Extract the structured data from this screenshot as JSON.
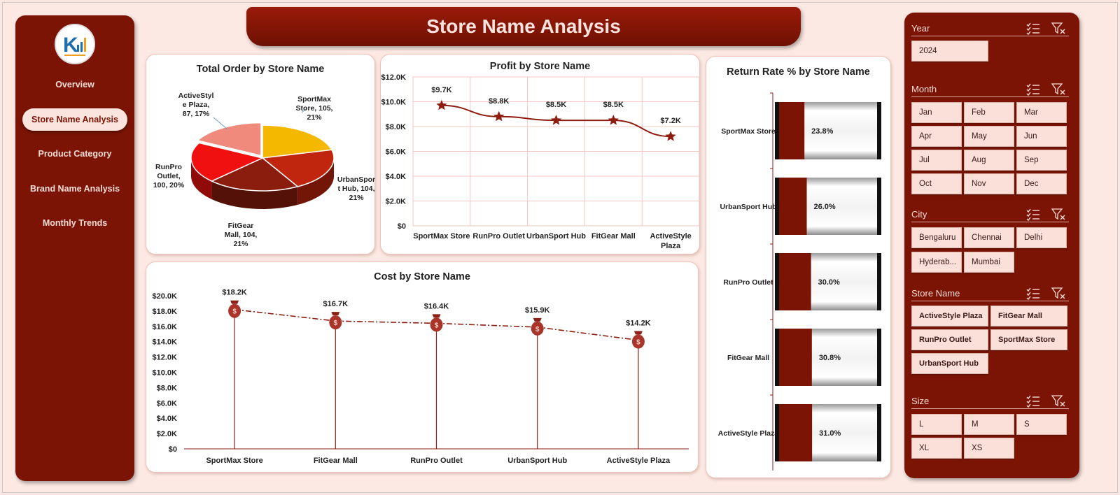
{
  "title": "Store Name Analysis",
  "nav": {
    "items": [
      {
        "label": "Overview"
      },
      {
        "label": "Store Name Analysis",
        "active": true
      },
      {
        "label": "Product Category"
      },
      {
        "label": "Brand Name Analysis"
      },
      {
        "label": "Monthly Trends"
      }
    ]
  },
  "colors": {
    "primary": "#7b1404",
    "background": "#fde9e4",
    "chip": "#fbe0da",
    "line": "#8e1c10"
  },
  "chart_data": [
    {
      "type": "pie",
      "title": "Total Order by Store Name",
      "slices": [
        {
          "name": "SportMax Store",
          "value": 105,
          "percent": "21%",
          "label_lines": [
            "SportMax",
            "Store, 105,",
            "21%"
          ],
          "color": "#f5b800"
        },
        {
          "name": "UrbanSport Hub",
          "value": 104,
          "percent": "21%",
          "label_lines": [
            "UrbanSpor",
            "t Hub, 104,",
            "21%"
          ],
          "color": "#c0250e"
        },
        {
          "name": "FitGear Mall",
          "value": 104,
          "percent": "21%",
          "label_lines": [
            "FitGear",
            "Mall, 104,",
            "21%"
          ],
          "color": "#8a1d0e"
        },
        {
          "name": "RunPro Outlet",
          "value": 100,
          "percent": "20%",
          "label_lines": [
            "RunPro",
            "Outlet,",
            "100, 20%"
          ],
          "color": "#f01010"
        },
        {
          "name": "ActiveStyle Plaza",
          "value": 87,
          "percent": "17%",
          "label_lines": [
            "ActiveStyl",
            "e Plaza,",
            "87, 17%"
          ],
          "color": "#f08a7c"
        }
      ]
    },
    {
      "type": "line",
      "title": "Profit by Store Name",
      "categories": [
        "SportMax Store",
        "RunPro Outlet",
        "UrbanSport Hub",
        "FitGear Mall",
        "ActiveStyle Plaza"
      ],
      "category_lines": [
        [
          "SportMax Store"
        ],
        [
          "RunPro Outlet"
        ],
        [
          "UrbanSport Hub"
        ],
        [
          "FitGear Mall"
        ],
        [
          "ActiveStyle",
          "Plaza"
        ]
      ],
      "values": [
        9700,
        8800,
        8500,
        8500,
        7200
      ],
      "data_labels": [
        "$9.7K",
        "$8.8K",
        "$8.5K",
        "$8.5K",
        "$7.2K"
      ],
      "yticks": [
        "$0",
        "$2.0K",
        "$4.0K",
        "$6.0K",
        "$8.0K",
        "$10.0K",
        "$12.0K"
      ],
      "ylim": [
        0,
        12000
      ],
      "grid": true,
      "marker": "star"
    },
    {
      "type": "bar",
      "orientation": "horizontal",
      "title": "Return Rate % by Store Name",
      "categories": [
        "SportMax Store",
        "UrbanSport Hub",
        "RunPro Outlet",
        "FitGear Mall",
        "ActiveStyle Plaza"
      ],
      "values": [
        23.8,
        26.0,
        30.0,
        30.8,
        31.0
      ],
      "data_labels": [
        "23.8%",
        "26.0%",
        "30.0%",
        "30.8%",
        "31.0%"
      ],
      "xlim": [
        0,
        100
      ]
    },
    {
      "type": "line",
      "title": "Cost by Store Name",
      "categories": [
        "SportMax Store",
        "FitGear Mall",
        "RunPro Outlet",
        "UrbanSport Hub",
        "ActiveStyle Plaza"
      ],
      "values": [
        18200,
        16700,
        16400,
        15900,
        14200
      ],
      "data_labels": [
        "$18.2K",
        "$16.7K",
        "$16.4K",
        "$15.9K",
        "$14.2K"
      ],
      "yticks": [
        "$0",
        "$2.0K",
        "$4.0K",
        "$6.0K",
        "$8.0K",
        "$10.0K",
        "$12.0K",
        "$14.0K",
        "$16.0K",
        "$18.0K",
        "$20.0K"
      ],
      "ylim": [
        0,
        20000
      ],
      "marker": "money-bag",
      "line_style": "dash-dot"
    }
  ],
  "slicers": [
    {
      "name": "year",
      "label": "Year",
      "items": [
        "2024"
      ]
    },
    {
      "name": "month",
      "label": "Month",
      "items": [
        "Jan",
        "Feb",
        "Mar",
        "Apr",
        "May",
        "Jun",
        "Jul",
        "Aug",
        "Sep",
        "Oct",
        "Nov",
        "Dec"
      ]
    },
    {
      "name": "city",
      "label": "City",
      "items": [
        "Bengaluru",
        "Chennai",
        "Delhi",
        "Hyderab...",
        "Mumbai"
      ]
    },
    {
      "name": "store",
      "label": "Store Name",
      "items": [
        "ActiveStyle Plaza",
        "FitGear Mall",
        "RunPro Outlet",
        "SportMax Store",
        "UrbanSport Hub"
      ]
    },
    {
      "name": "size",
      "label": "Size",
      "items": [
        "L",
        "M",
        "S",
        "XL",
        "XS"
      ]
    }
  ],
  "icons": {
    "multi_select": "multi-select-icon",
    "clear_filter": "clear-filter-icon",
    "logo": "logo-icon",
    "money_bag": "money-bag-icon",
    "star": "star-icon"
  }
}
